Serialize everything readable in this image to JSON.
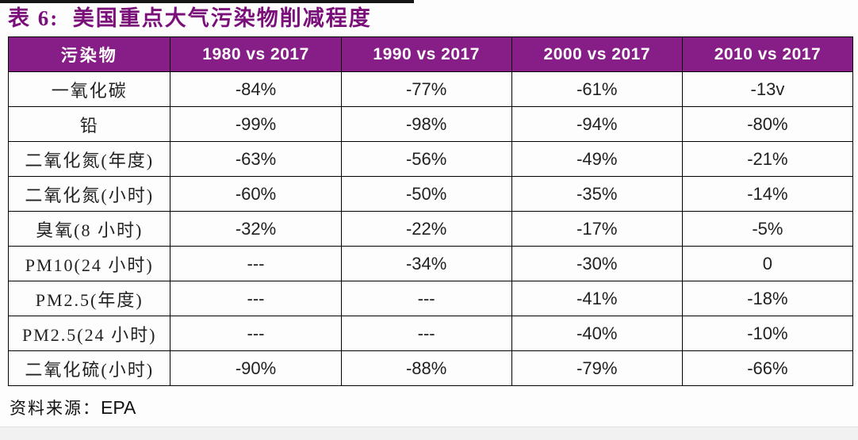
{
  "title": "表 6:  美国重点大气污染物削减程度",
  "colors": {
    "title_purple": "#7a0f7a",
    "header_background": "#871e87",
    "header_text": "#ffffff",
    "cell_text": "#212121",
    "table_border": "#000000",
    "top_rule": "#161616",
    "footer_band": "#f1f1f1"
  },
  "table": {
    "columns": [
      "污染物",
      "1980 vs 2017",
      "1990 vs 2017",
      "2000 vs 2017",
      "2010 vs 2017"
    ],
    "rows": [
      {
        "label": "一氧化碳",
        "values": [
          "-84%",
          "-77%",
          "-61%",
          "-13v"
        ]
      },
      {
        "label": "铅",
        "values": [
          "-99%",
          "-98%",
          "-94%",
          "-80%"
        ]
      },
      {
        "label": "二氧化氮(年度)",
        "values": [
          "-63%",
          "-56%",
          "-49%",
          "-21%"
        ]
      },
      {
        "label": "二氧化氮(小时)",
        "values": [
          "-60%",
          "-50%",
          "-35%",
          "-14%"
        ]
      },
      {
        "label": "臭氧(8 小时)",
        "values": [
          "-32%",
          "-22%",
          "-17%",
          "-5%"
        ]
      },
      {
        "label": "PM10(24 小时)",
        "values": [
          "---",
          "-34%",
          "-30%",
          "0"
        ]
      },
      {
        "label": "PM2.5(年度)",
        "values": [
          "---",
          "---",
          "-41%",
          "-18%"
        ]
      },
      {
        "label": "PM2.5(24 小时)",
        "values": [
          "---",
          "---",
          "-40%",
          "-10%"
        ]
      },
      {
        "label": "二氧化硫(小时)",
        "values": [
          "-90%",
          "-88%",
          "-79%",
          "-66%"
        ]
      }
    ]
  },
  "source": {
    "label": "资料来源：",
    "value": "EPA"
  }
}
